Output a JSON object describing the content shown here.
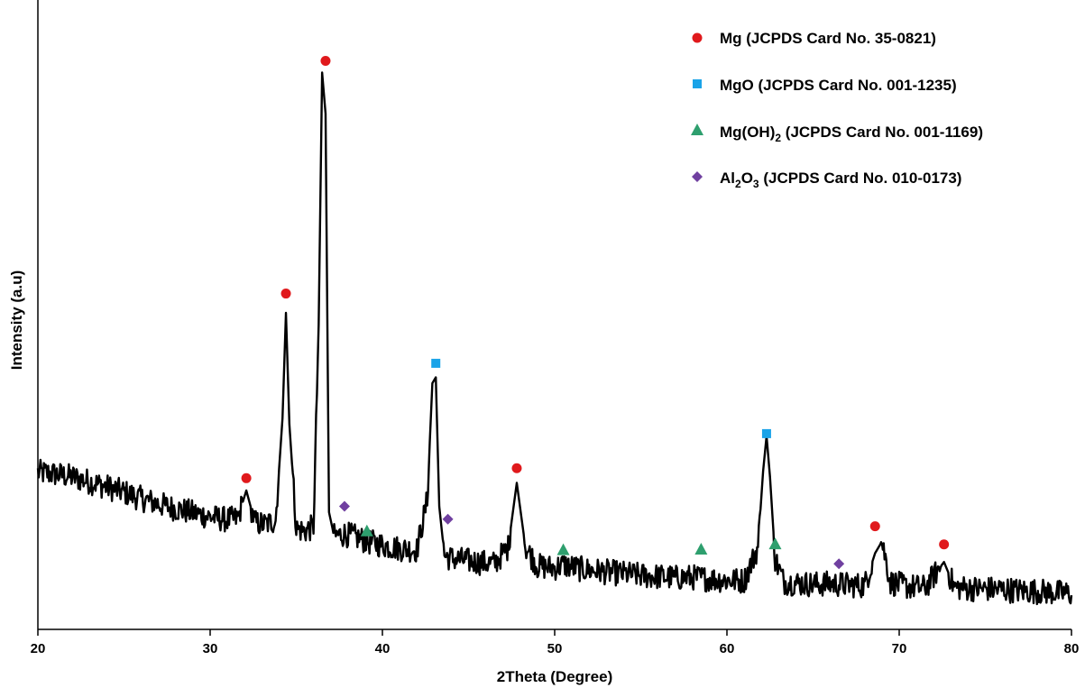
{
  "chart_data": {
    "type": "line",
    "title": "",
    "xlabel": "2Theta (Degree)",
    "ylabel": "Intensity (a.u)",
    "xlim": [
      20,
      80
    ],
    "ylim": [
      0,
      100
    ],
    "xticks": [
      20,
      30,
      40,
      50,
      60,
      70,
      80
    ],
    "y_ticks_shown": false,
    "grid": false,
    "legend_position": "top-right",
    "line_color": "#000000",
    "series": [
      {
        "x": [
          20.0,
          21.0,
          22.0,
          23.0,
          24.0,
          25.0,
          26.0,
          27.0,
          28.0,
          29.0,
          30.0,
          31.0,
          31.6,
          32.1,
          32.6,
          33.2,
          33.8,
          34.2,
          34.4,
          34.6,
          35.0,
          35.5,
          36.0,
          36.3,
          36.5,
          36.7,
          36.9,
          37.2,
          37.8,
          38.5,
          39.1,
          40.0,
          41.0,
          42.0,
          42.6,
          42.9,
          43.1,
          43.3,
          43.6,
          44.0,
          44.5,
          45.5,
          46.5,
          47.3,
          47.8,
          48.3,
          49.0,
          50.0,
          50.5,
          51.5,
          53.0,
          55.0,
          57.0,
          58.0,
          59.0,
          60.0,
          61.0,
          61.8,
          62.1,
          62.3,
          62.5,
          62.8,
          63.3,
          64.0,
          65.0,
          66.0,
          67.0,
          68.0,
          68.6,
          69.0,
          69.5,
          70.5,
          71.5,
          72.6,
          73.2,
          74.0,
          75.0,
          76.0,
          77.0,
          78.0,
          79.0,
          80.0
        ],
        "y": [
          26.8,
          26.5,
          26.0,
          25.2,
          24.3,
          23.4,
          22.3,
          21.4,
          20.6,
          19.9,
          19.2,
          18.7,
          18.9,
          23.7,
          18.2,
          17.9,
          18.6,
          36.0,
          54.0,
          35.0,
          17.2,
          16.8,
          17.5,
          52.0,
          95.0,
          88.0,
          20.0,
          15.9,
          16.3,
          15.7,
          15.0,
          14.4,
          13.8,
          13.6,
          22.0,
          42.0,
          43.0,
          21.0,
          12.6,
          12.1,
          11.9,
          11.5,
          11.2,
          14.0,
          25.0,
          14.1,
          10.8,
          10.5,
          11.0,
          10.3,
          9.8,
          9.2,
          8.8,
          8.9,
          8.6,
          8.4,
          8.3,
          14.0,
          27.0,
          33.0,
          26.0,
          12.0,
          8.1,
          7.9,
          7.7,
          7.8,
          7.6,
          7.5,
          13.0,
          15.0,
          8.0,
          7.3,
          7.1,
          11.5,
          7.2,
          7.0,
          6.9,
          6.8,
          6.6,
          6.5,
          6.3,
          6.1
        ],
        "noise_amplitude": 2.2
      }
    ],
    "phase_markers": [
      {
        "phase": "Mg",
        "x": [
          32.1,
          34.4,
          36.7,
          47.8,
          68.6,
          72.6
        ],
        "y": [
          25.8,
          57.3,
          97.0,
          27.5,
          17.6,
          14.5
        ]
      },
      {
        "phase": "MgO",
        "x": [
          43.1,
          62.3
        ],
        "y": [
          45.4,
          33.4
        ]
      },
      {
        "phase": "Mg(OH)2",
        "x": [
          39.1,
          50.5,
          58.5,
          62.8
        ],
        "y": [
          16.8,
          13.6,
          13.7,
          14.6
        ]
      },
      {
        "phase": "Al2O3",
        "x": [
          37.8,
          43.8,
          66.5
        ],
        "y": [
          21.0,
          18.8,
          11.2
        ]
      }
    ],
    "legend": [
      {
        "label": "Mg (JCPDS Card No. 35-0821)",
        "marker": "circle",
        "color": "#e0191c"
      },
      {
        "label_main": "Mg(OH)",
        "sub": "2",
        "label_rest": " (JCPDS Card No. 001-1169)",
        "marker": "triangle",
        "color": "#2e9f6e"
      },
      {
        "label": "MgO (JCPDS Card No. 001-1235)",
        "marker": "square",
        "color": "#1aa3e8"
      },
      {
        "label_a": "Al",
        "sub_a": "2",
        "label_b": "O",
        "sub_b": "3",
        "label_rest": " (JCPDS Card No. 010-0173)",
        "marker": "diamond",
        "color": "#7040a0"
      }
    ]
  }
}
